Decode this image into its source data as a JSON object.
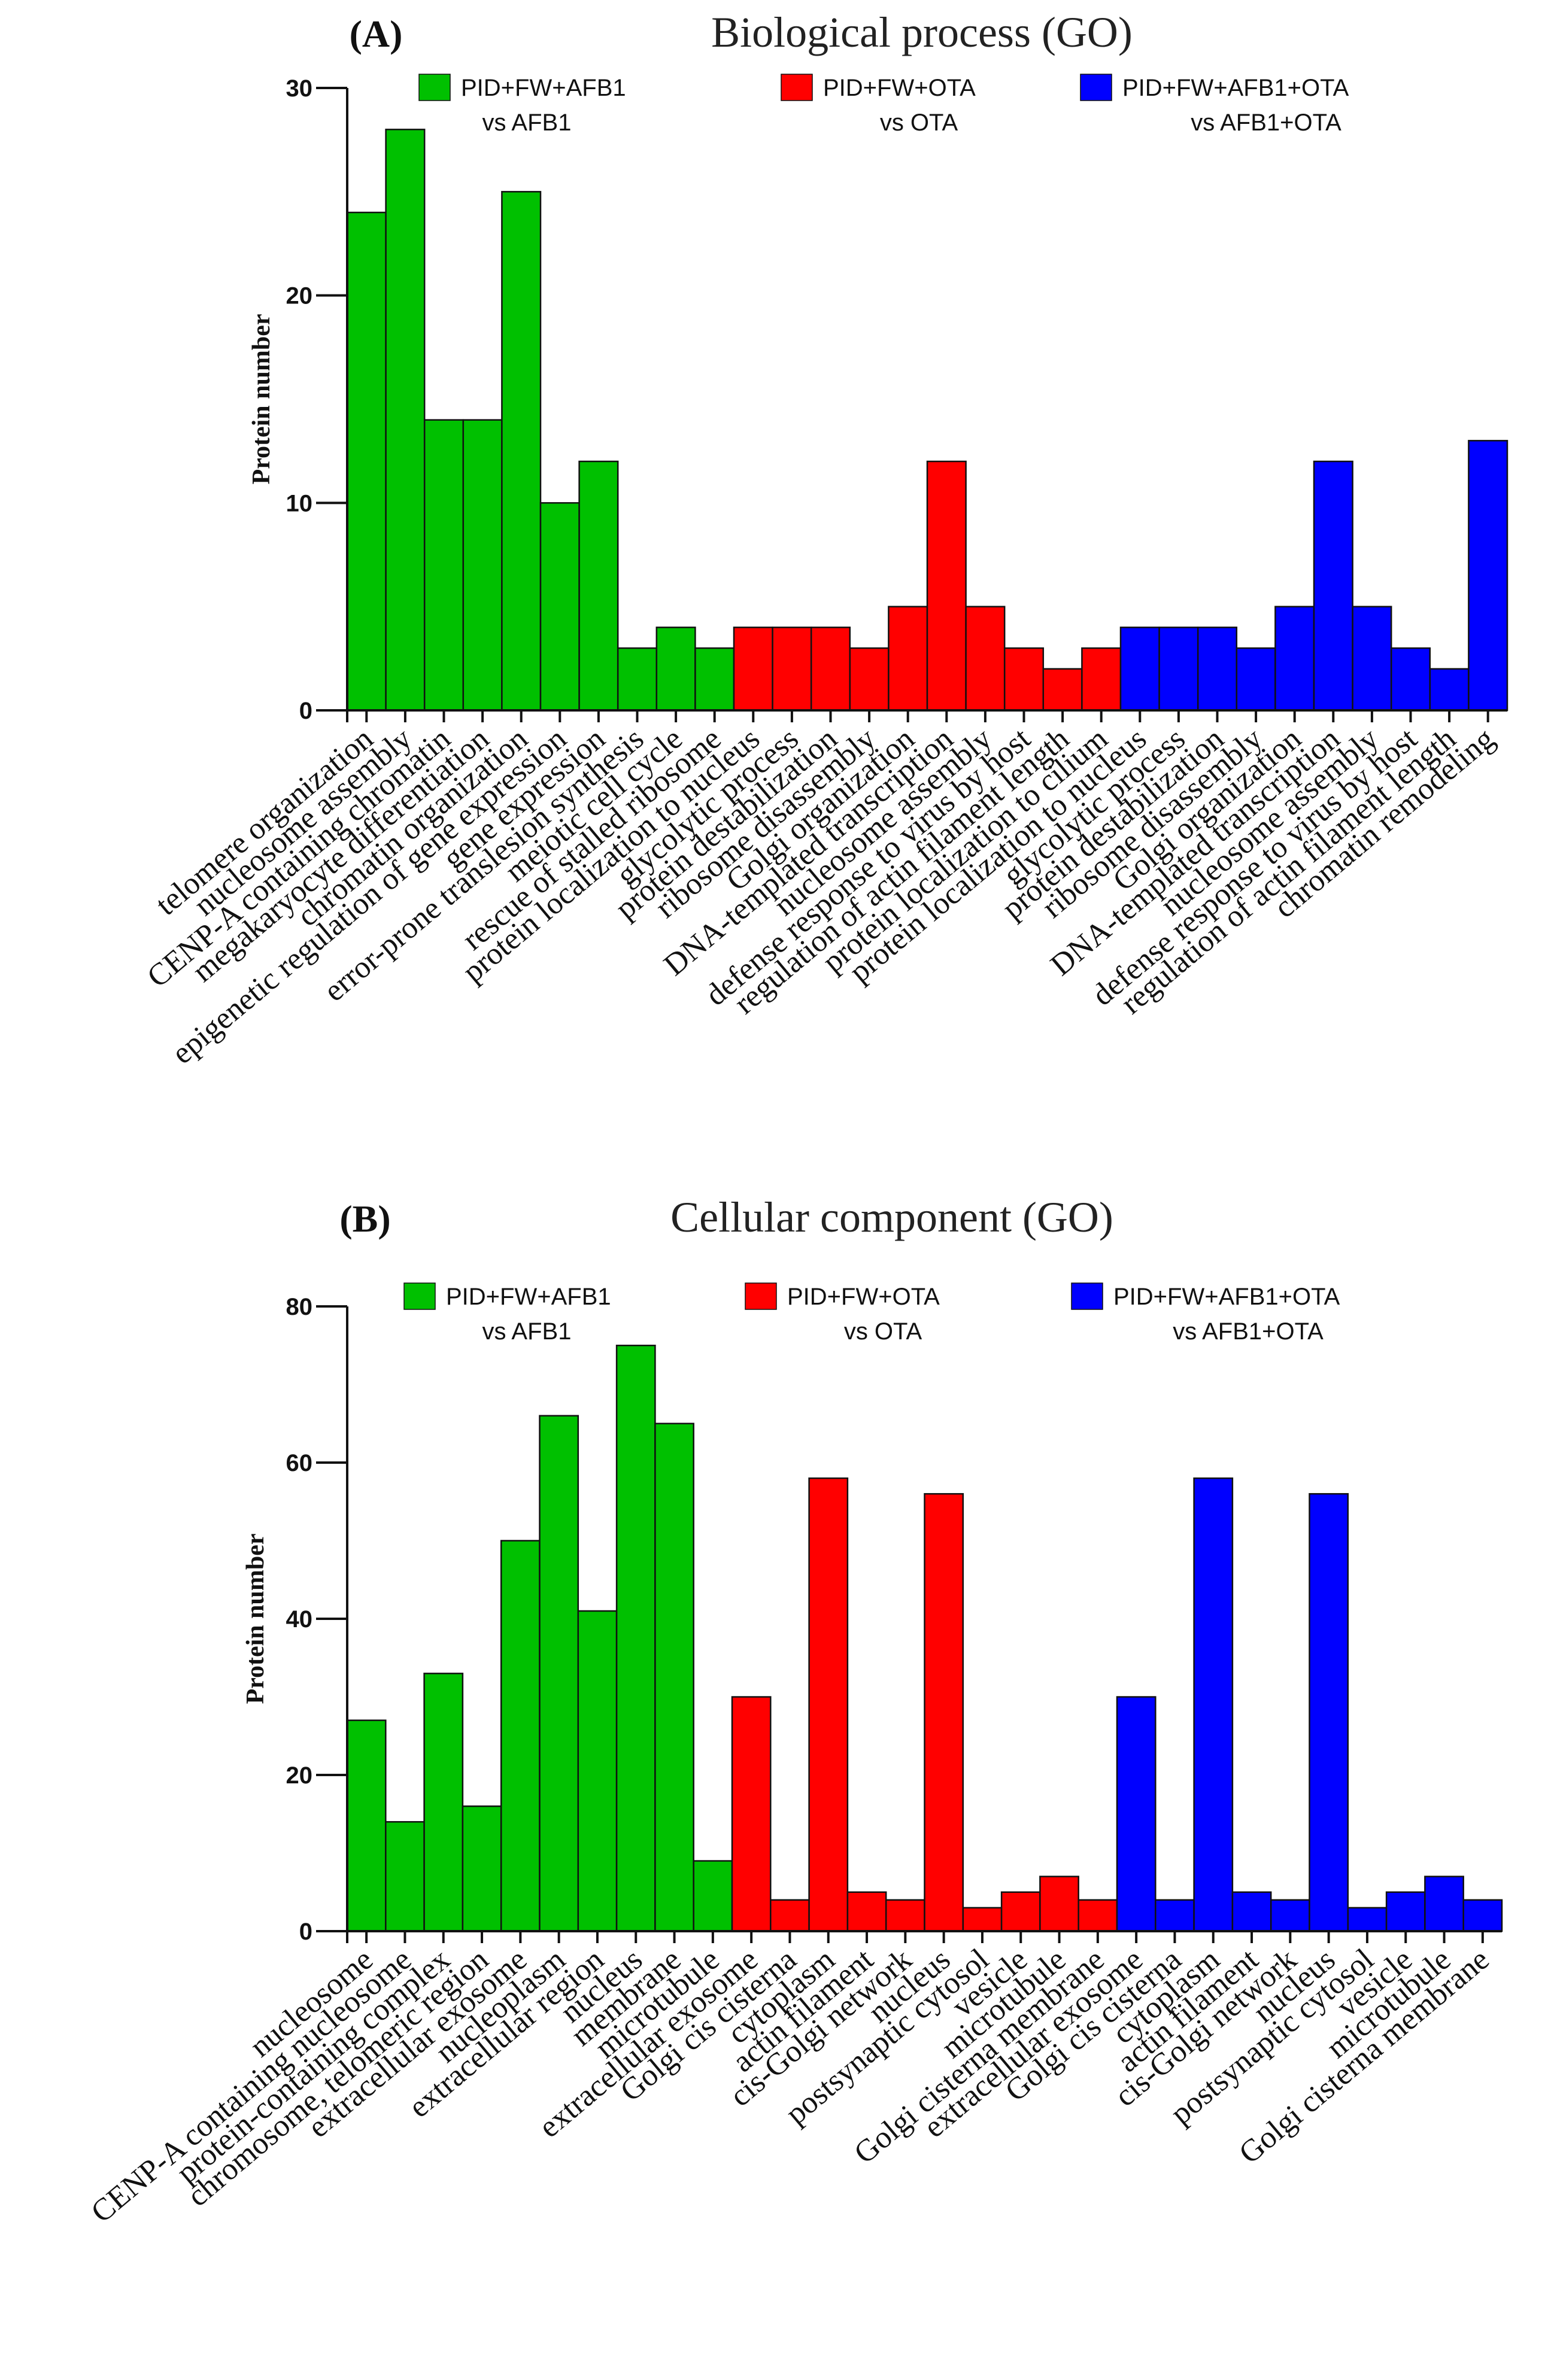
{
  "chart_data": [
    {
      "type": "bar",
      "panel": "(A)",
      "title": "Biological process (GO)",
      "xlabel": "",
      "ylabel": "Protein number",
      "ylim": [
        0,
        30
      ],
      "yticks": [
        0,
        10,
        20,
        30
      ],
      "legend": [
        {
          "name": "PID+FW+AFB1",
          "subtitle": "vs AFB1",
          "color": "#00c000"
        },
        {
          "name": "PID+FW+OTA",
          "subtitle": "vs OTA",
          "color": "#ff0000"
        },
        {
          "name": "PID+FW+AFB1+OTA",
          "subtitle": "vs AFB1+OTA",
          "color": "#0000ff"
        }
      ],
      "series": [
        {
          "name": "PID+FW+AFB1 vs AFB1",
          "color": "#00c000",
          "categories": [
            "telomere organization",
            "nucleosome assembly",
            "CENP-A containing chromatin",
            "megakaryocyte differentiation",
            "chromatin organization",
            "epigenetic regulation of gene expression",
            "gene expression",
            "error-prone translesion synthesis",
            "meiotic cell cycle",
            "rescue of stalled ribosome"
          ],
          "values": [
            24,
            28,
            14,
            14,
            25,
            10,
            12,
            3,
            4,
            3
          ]
        },
        {
          "name": "PID+FW+OTA vs OTA",
          "color": "#ff0000",
          "categories": [
            "protein localization to nucleus",
            "glycolytic process",
            "protein destabilization",
            "ribosome disassembly",
            "Golgi organization",
            "DNA-templated transcription",
            "nucleosome assembly",
            "defense response to virus by host",
            "regulation of actin filament length",
            "protein localization to cilium"
          ],
          "values": [
            4,
            4,
            4,
            3,
            5,
            12,
            5,
            3,
            2,
            3
          ]
        },
        {
          "name": "PID+FW+AFB1+OTA vs AFB1+OTA",
          "color": "#0000ff",
          "categories": [
            "protein localization to nucleus",
            "glycolytic process",
            "protein destabilization",
            "ribosome disassembly",
            "Golgi organization",
            "DNA-templated transcription",
            "nucleosome assembly",
            "defense response to virus by host",
            "regulation of actin filament length",
            "chromatin remodeling"
          ],
          "values": [
            4,
            4,
            4,
            3,
            5,
            12,
            5,
            3,
            2,
            13
          ]
        }
      ]
    },
    {
      "type": "bar",
      "panel": "(B)",
      "title": "Cellular component (GO)",
      "xlabel": "",
      "ylabel": "Protein number",
      "ylim": [
        0,
        80
      ],
      "yticks": [
        0,
        20,
        40,
        60,
        80
      ],
      "legend": [
        {
          "name": "PID+FW+AFB1",
          "subtitle": "vs AFB1",
          "color": "#00c000"
        },
        {
          "name": "PID+FW+OTA",
          "subtitle": "vs OTA",
          "color": "#ff0000"
        },
        {
          "name": "PID+FW+AFB1+OTA",
          "subtitle": "vs AFB1+OTA",
          "color": "#0000ff"
        }
      ],
      "series": [
        {
          "name": "PID+FW+AFB1 vs AFB1",
          "color": "#00c000",
          "categories": [
            "nucleosome",
            "CENP-A containing nucleosome",
            "protein-containing complex",
            "chromosome, telomeric region",
            "extracellular exosome",
            "nucleoplasm",
            "extracellular region",
            "nucleus",
            "membrane",
            "microtubule"
          ],
          "values": [
            27,
            14,
            33,
            16,
            50,
            66,
            41,
            75,
            65,
            9
          ]
        },
        {
          "name": "PID+FW+OTA vs OTA",
          "color": "#ff0000",
          "categories": [
            "extracellular exosome",
            "Golgi cis cisterna",
            "cytoplasm",
            "actin filament",
            "cis-Golgi network",
            "nucleus",
            "postsynaptic cytosol",
            "vesicle",
            "microtubule",
            "Golgi cisterna membrane"
          ],
          "values": [
            30,
            4,
            58,
            5,
            4,
            56,
            3,
            5,
            7,
            4
          ]
        },
        {
          "name": "PID+FW+AFB1+OTA vs AFB1+OTA",
          "color": "#0000ff",
          "categories": [
            "extracellular exosome",
            "Golgi cis cisterna",
            "cytoplasm",
            "actin filament",
            "cis-Golgi network",
            "nucleus",
            "postsynaptic cytosol",
            "vesicle",
            "microtubule",
            "Golgi cisterna membrane"
          ],
          "values": [
            30,
            4,
            58,
            5,
            4,
            56,
            3,
            5,
            7,
            4
          ]
        }
      ]
    }
  ]
}
